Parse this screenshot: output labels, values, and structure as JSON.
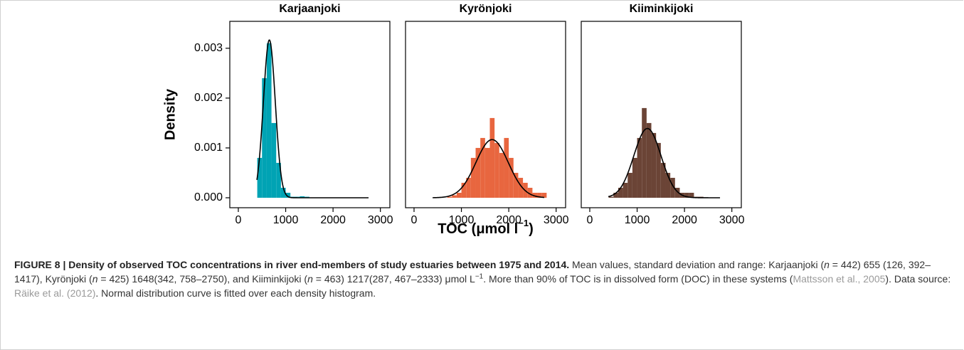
{
  "chart_data": [
    {
      "type": "histogram",
      "title": "Karjaanjoki",
      "color": "#00a3b4",
      "ylabel": "Density",
      "bins": [
        400,
        500,
        600,
        700,
        800,
        900,
        1000,
        1100,
        1200,
        1300,
        1400,
        1500
      ],
      "values": [
        0.0008,
        0.0024,
        0.0031,
        0.0015,
        0.0007,
        0.0002,
        0.0001,
        2e-05,
        2e-05,
        3e-05,
        2e-05
      ],
      "curve": {
        "mean": 655,
        "sd": 126,
        "xlim": [
          392,
          2750
        ]
      },
      "xlim": [
        -180,
        3200
      ],
      "ylim": [
        -0.0002,
        0.00354
      ],
      "xticks": [
        0,
        1000,
        2000,
        3000
      ],
      "yticks": [
        {
          "value": 0,
          "label": "0.000"
        },
        {
          "value": 0.001,
          "label": "0.001"
        },
        {
          "value": 0.002,
          "label": "0.002"
        },
        {
          "value": 0.003,
          "label": "0.003"
        }
      ]
    },
    {
      "type": "histogram",
      "title": "Kyrönjoki",
      "color": "#e8663f",
      "xlabel_parts": [
        "TOC (μmol l",
        "−1",
        ")"
      ],
      "bins": [
        700,
        800,
        900,
        1000,
        1100,
        1200,
        1300,
        1400,
        1500,
        1600,
        1700,
        1800,
        1900,
        2000,
        2100,
        2200,
        2300,
        2400,
        2500,
        2600,
        2700,
        2800
      ],
      "values": [
        2e-05,
        5e-05,
        0.0001,
        0.0003,
        0.0004,
        0.0008,
        0.001,
        0.0012,
        0.001,
        0.0016,
        0.0011,
        0.0009,
        0.0012,
        0.0008,
        0.0005,
        0.0004,
        0.0003,
        0.0002,
        0.0001,
        0.0001,
        0.0001
      ],
      "curve": {
        "mean": 1648,
        "sd": 342,
        "xlim": [
          392,
          2750
        ]
      },
      "xlim": [
        -180,
        3200
      ],
      "ylim": [
        -0.0002,
        0.00354
      ],
      "xticks": [
        0,
        1000,
        2000,
        3000
      ]
    },
    {
      "type": "histogram",
      "title": "Kiiminkijoki",
      "color": "#6b4436",
      "bins": [
        400,
        500,
        600,
        700,
        800,
        900,
        1000,
        1100,
        1200,
        1300,
        1400,
        1500,
        1600,
        1700,
        1800,
        1900,
        2000,
        2100,
        2200,
        2300,
        2400
      ],
      "values": [
        2e-05,
        0.0001,
        0.0002,
        0.0003,
        0.0005,
        0.0008,
        0.0012,
        0.0018,
        0.0015,
        0.0013,
        0.0011,
        0.0007,
        0.0005,
        0.0004,
        0.0002,
        0.0001,
        0.0001,
        0.0001,
        2e-05,
        2e-05
      ],
      "curve": {
        "mean": 1217,
        "sd": 287,
        "xlim": [
          392,
          2750
        ]
      },
      "xlim": [
        -180,
        3200
      ],
      "ylim": [
        -0.0002,
        0.00354
      ],
      "xticks": [
        0,
        1000,
        2000,
        3000
      ]
    }
  ],
  "caption": [
    {
      "text": "FIGURE 8 | Density of observed TOC concentrations in river end-members of study estuaries between 1975 and 2014.",
      "style": "bold"
    },
    {
      "text": " Mean values, standard deviation and range: Karjaanjoki (",
      "style": "plain"
    },
    {
      "text": "n",
      "style": "italic"
    },
    {
      "text": " = 442) 655 (126, 392–1417), Kyrönjoki (",
      "style": "plain"
    },
    {
      "text": "n",
      "style": "italic"
    },
    {
      "text": " = 425) 1648(342, 758–2750), and Kiiminkijoki (",
      "style": "plain"
    },
    {
      "text": "n",
      "style": "italic"
    },
    {
      "text": " = 463) 1217(287, 467–2333) μmol L",
      "style": "plain"
    },
    {
      "text": "−1",
      "style": "sup"
    },
    {
      "text": ". More than 90% of TOC is in dissolved form (DOC) in these systems (",
      "style": "plain"
    },
    {
      "text": "Mattsson et al., 2005",
      "style": "link"
    },
    {
      "text": "). Data source: ",
      "style": "plain"
    },
    {
      "text": "Räike et al. (2012)",
      "style": "link"
    },
    {
      "text": ". Normal distribution curve is fitted over each density histogram.",
      "style": "plain"
    }
  ]
}
